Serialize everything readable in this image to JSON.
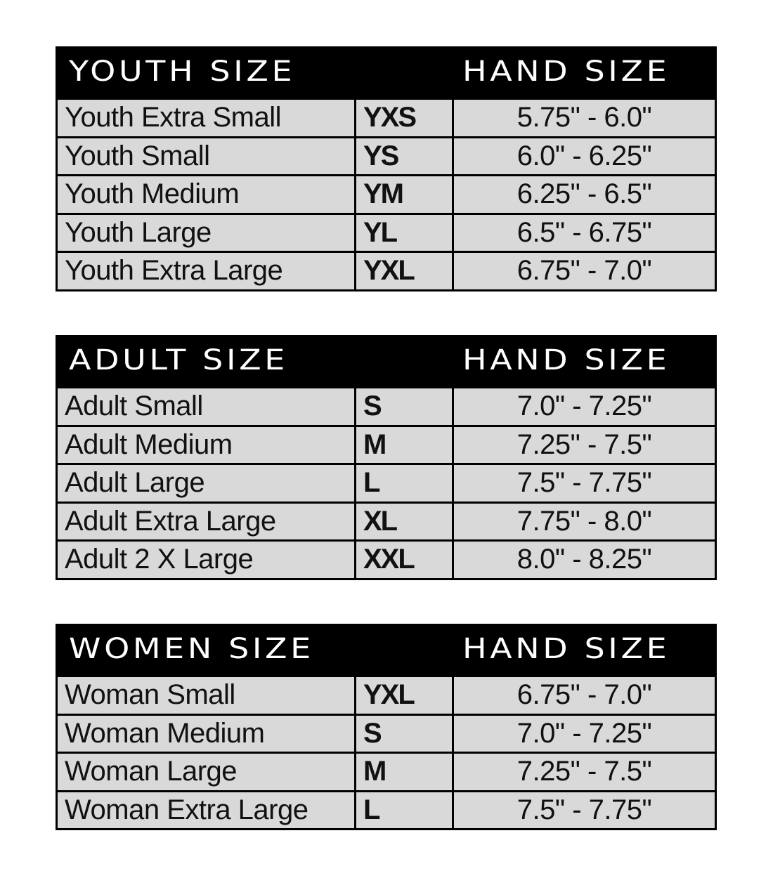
{
  "tables": [
    {
      "title": "YOUTH SIZE",
      "hand_header": "HAND SIZE",
      "rows": [
        {
          "name": "Youth Extra Small",
          "code": "YXS",
          "hand": "5.75\" - 6.0\""
        },
        {
          "name": "Youth Small",
          "code": "YS",
          "hand": "6.0\" - 6.25\""
        },
        {
          "name": "Youth Medium",
          "code": "YM",
          "hand": "6.25\" - 6.5\""
        },
        {
          "name": "Youth Large",
          "code": "YL",
          "hand": "6.5\" - 6.75\""
        },
        {
          "name": "Youth Extra Large",
          "code": "YXL",
          "hand": "6.75\" - 7.0\""
        }
      ]
    },
    {
      "title": "ADULT SIZE",
      "hand_header": "HAND SIZE",
      "rows": [
        {
          "name": "Adult Small",
          "code": "S",
          "hand": "7.0\" - 7.25\""
        },
        {
          "name": "Adult Medium",
          "code": "M",
          "hand": "7.25\" - 7.5\""
        },
        {
          "name": "Adult Large",
          "code": "L",
          "hand": "7.5\" - 7.75\""
        },
        {
          "name": "Adult Extra Large",
          "code": "XL",
          "hand": "7.75\" - 8.0\""
        },
        {
          "name": "Adult 2 X Large",
          "code": "XXL",
          "hand": "8.0\" - 8.25\""
        }
      ]
    },
    {
      "title": "WOMEN SIZE",
      "hand_header": "HAND SIZE",
      "rows": [
        {
          "name": "Woman Small",
          "code": "YXL",
          "hand": "6.75\" - 7.0\""
        },
        {
          "name": "Woman Medium",
          "code": "S",
          "hand": "7.0\" - 7.25\""
        },
        {
          "name": "Woman Large",
          "code": "M",
          "hand": "7.25\" - 7.5\""
        },
        {
          "name": "Woman Extra Large",
          "code": "L",
          "hand": "7.5\" - 7.75\""
        }
      ]
    }
  ]
}
